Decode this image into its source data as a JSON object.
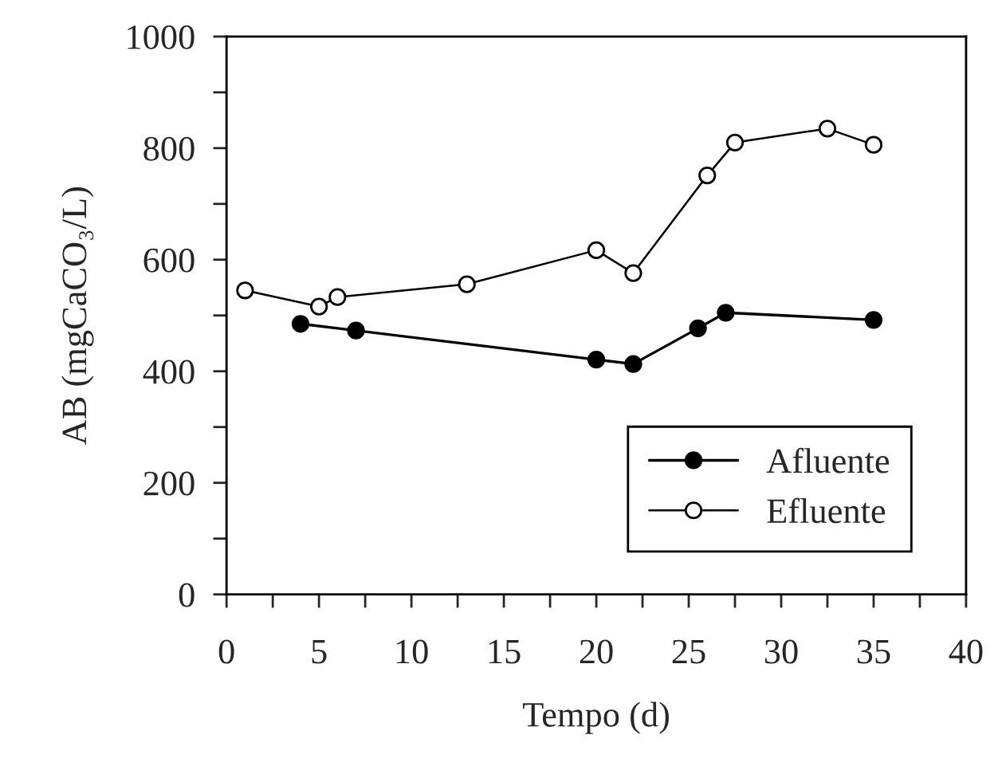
{
  "chart_data": {
    "type": "line",
    "xlabel": "Tempo (d)",
    "ylabel": "AB (mgCaCO₃/L)",
    "series": [
      {
        "name": "Afluente",
        "color": "#000000",
        "marker": "circle",
        "x": [
          4,
          7,
          20,
          22,
          25.5,
          27,
          35
        ],
        "values": [
          485,
          473,
          421,
          413,
          477,
          505,
          492
        ]
      },
      {
        "name": "Efluente",
        "color": "#000000",
        "marker": "open circle",
        "x": [
          1,
          5,
          6,
          13,
          20,
          22,
          26,
          27.5,
          32.5,
          35
        ],
        "values": [
          545,
          516,
          533,
          556,
          617,
          576,
          751,
          810,
          835,
          806
        ]
      }
    ],
    "xlim": [
      0,
      40
    ],
    "ylim": [
      0,
      1000
    ],
    "xticks": [
      0,
      {
        "value": 2.5,
        "label": null
      },
      5,
      {
        "value": 7.5,
        "label": null
      },
      10,
      {
        "value": 12.5,
        "label": null
      },
      15,
      {
        "value": 17.5,
        "label": null
      },
      20,
      {
        "value": 22.5,
        "label": null
      },
      25,
      {
        "value": 27.5,
        "label": null
      },
      30,
      {
        "value": 32.5,
        "label": null
      },
      35,
      {
        "value": 37.5,
        "label": null
      },
      40
    ],
    "yticks": [
      0,
      {
        "value": 100,
        "label": null
      },
      200,
      {
        "value": 300,
        "label": null
      },
      400,
      {
        "value": 500,
        "label": null
      },
      600,
      {
        "value": 700,
        "label": null
      },
      800,
      {
        "value": 900,
        "label": null
      },
      1000
    ],
    "grid": false,
    "legend": "bottom right",
    "line_style": "solid"
  }
}
